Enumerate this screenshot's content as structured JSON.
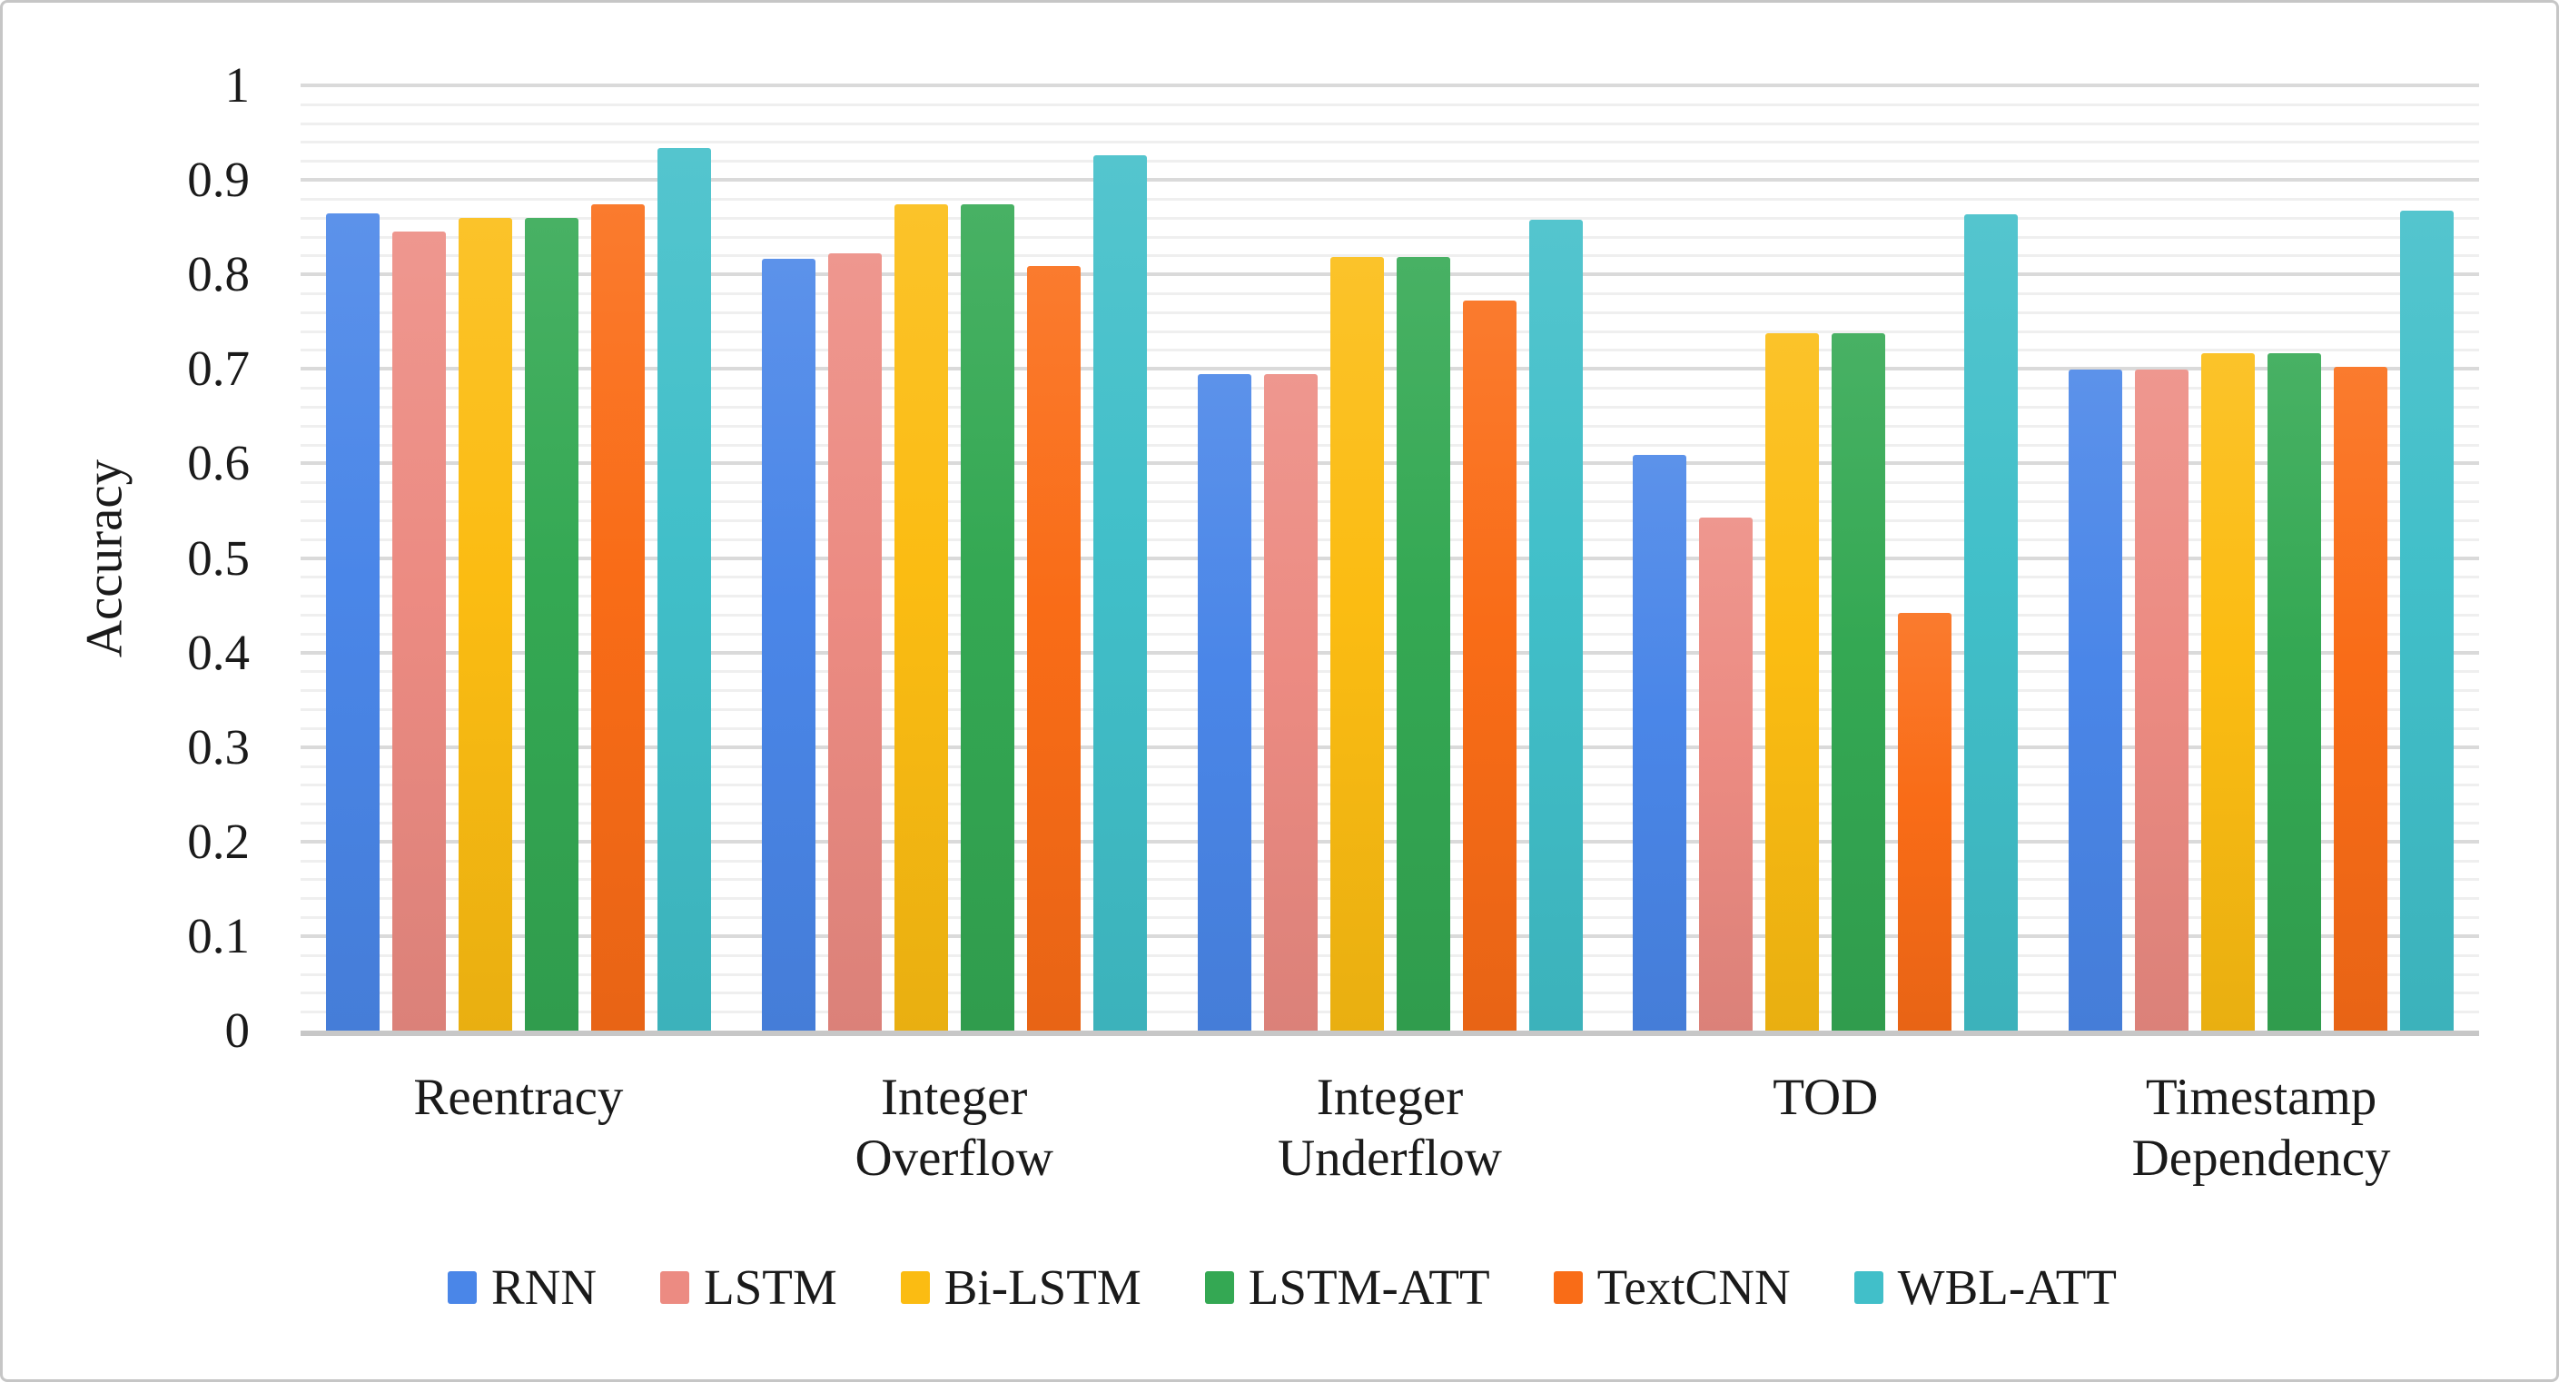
{
  "chart_data": {
    "type": "bar",
    "title": "",
    "xlabel": "",
    "ylabel": "Accuracy",
    "ylim": [
      0,
      1
    ],
    "y_major_step": 0.1,
    "y_minor_step": 0.02,
    "grid": true,
    "legend_position": "bottom",
    "y_tick_labels": [
      "0",
      "0.1",
      "0.2",
      "0.3",
      "0.4",
      "0.5",
      "0.6",
      "0.7",
      "0.8",
      "0.9",
      "1"
    ],
    "categories": [
      "Reentracy",
      "Integer Overflow",
      "Integer Underflow",
      "TOD",
      "Timestamp Dependency"
    ],
    "category_label_lines": [
      [
        "Reentracy"
      ],
      [
        "Integer",
        "Overflow"
      ],
      [
        "Integer",
        "Underflow"
      ],
      [
        "TOD"
      ],
      [
        "Timestamp",
        "Dependency"
      ]
    ],
    "series": [
      {
        "name": "RNN",
        "color": "#4A86E8",
        "values": [
          0.865,
          0.817,
          0.695,
          0.609,
          0.699
        ]
      },
      {
        "name": "LSTM",
        "color": "#EC8B82",
        "values": [
          0.845,
          0.822,
          0.695,
          0.543,
          0.699
        ]
      },
      {
        "name": "Bi-LSTM",
        "color": "#FBBC12",
        "values": [
          0.86,
          0.874,
          0.818,
          0.738,
          0.717
        ]
      },
      {
        "name": "LSTM-ATT",
        "color": "#34A853",
        "values": [
          0.86,
          0.874,
          0.818,
          0.738,
          0.717
        ]
      },
      {
        "name": "TextCNN",
        "color": "#F96C17",
        "values": [
          0.874,
          0.809,
          0.772,
          0.442,
          0.702
        ]
      },
      {
        "name": "WBL-ATT",
        "color": "#41BFC9",
        "values": [
          0.934,
          0.926,
          0.858,
          0.864,
          0.867
        ]
      }
    ]
  }
}
